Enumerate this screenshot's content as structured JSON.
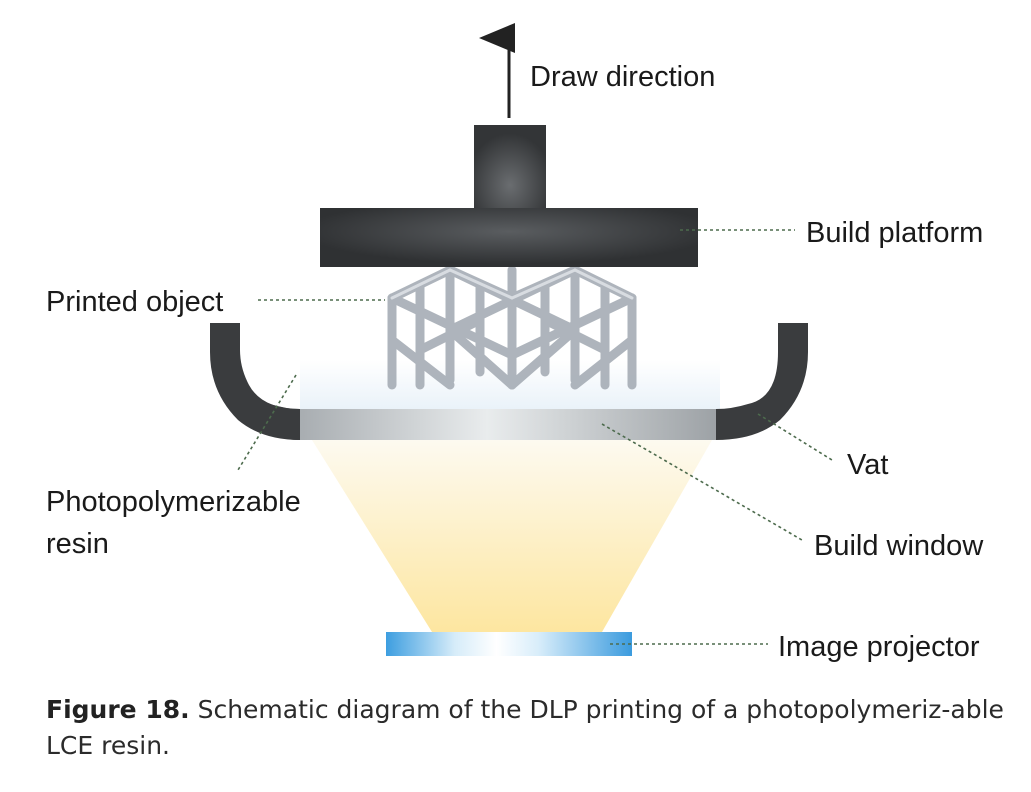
{
  "labels": {
    "draw_direction": "Draw direction",
    "build_platform": "Build platform",
    "printed_object": "Printed object",
    "vat": "Vat",
    "resin_line1": "Photopolymerizable",
    "resin_line2": "resin",
    "build_window": "Build window",
    "image_projector": "Image projector"
  },
  "caption": {
    "figure_number": "Figure 18.",
    "text": "Schematic diagram of the DLP printing of a photopolymeriz-able LCE resin."
  },
  "colors": {
    "platform": "#3a3c3e",
    "vat": "#3a3c3e",
    "lattice": "#b8bec6",
    "light_beam": "#fde9a8",
    "projector": "#4aa6e2",
    "leader_line": "#4d6b4d"
  }
}
